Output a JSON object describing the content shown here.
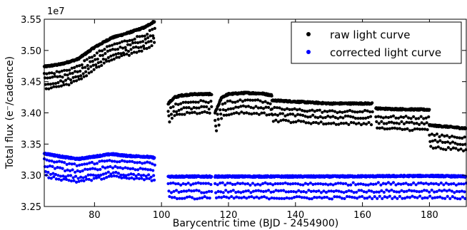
{
  "chart_data": {
    "type": "scatter",
    "xlabel": "Barycentric time (BJD - 2454900)",
    "ylabel": "Total flux (e⁻/cadence)",
    "y_offset_label": "1e7",
    "xlim": [
      65,
      191
    ],
    "ylim": [
      3.25,
      3.55
    ],
    "xticks": [
      "80",
      "100",
      "120",
      "140",
      "160",
      "180"
    ],
    "yticks": [
      "3.25",
      "3.30",
      "3.35",
      "3.40",
      "3.45",
      "3.50",
      "3.55"
    ],
    "grid": false,
    "legend_position": "top-right",
    "series": [
      {
        "name": "raw light curve",
        "color": "#000000",
        "segments": [
          {
            "x_range": [
              65,
              98
            ],
            "main_trend": [
              [
                65,
                3.474
              ],
              [
                70,
                3.478
              ],
              [
                75,
                3.486
              ],
              [
                80,
                3.505
              ],
              [
                85,
                3.52
              ],
              [
                90,
                3.528
              ],
              [
                95,
                3.537
              ],
              [
                98,
                3.547
              ]
            ],
            "lower_offsets": [
              -0.012,
              -0.02,
              -0.028,
              -0.035
            ]
          },
          {
            "x_range": [
              102,
              115
            ],
            "main_trend": [
              [
                102,
                3.415
              ],
              [
                104,
                3.425
              ],
              [
                106,
                3.428
              ],
              [
                110,
                3.43
              ],
              [
                115,
                3.43
              ]
            ],
            "lower_offsets": [
              -0.012,
              -0.022,
              -0.03
            ]
          },
          {
            "x_range": [
              116,
              133
            ],
            "main_trend": [
              [
                116,
                3.4
              ],
              [
                118,
                3.425
              ],
              [
                120,
                3.43
              ],
              [
                125,
                3.432
              ],
              [
                130,
                3.431
              ],
              [
                133,
                3.428
              ]
            ],
            "lower_offsets": [
              -0.012,
              -0.022,
              -0.032
            ]
          },
          {
            "x_range": [
              133,
              163
            ],
            "main_trend": [
              [
                133,
                3.42
              ],
              [
                140,
                3.418
              ],
              [
                150,
                3.415
              ],
              [
                163,
                3.415
              ]
            ],
            "lower_offsets": [
              -0.013,
              -0.022,
              -0.032
            ]
          },
          {
            "x_range": [
              164,
              180
            ],
            "main_trend": [
              [
                164,
                3.407
              ],
              [
                170,
                3.406
              ],
              [
                180,
                3.405
              ]
            ],
            "lower_offsets": [
              -0.013,
              -0.022,
              -0.032
            ]
          },
          {
            "x_range": [
              180,
              191
            ],
            "main_trend": [
              [
                180,
                3.38
              ],
              [
                185,
                3.378
              ],
              [
                191,
                3.375
              ]
            ],
            "lower_offsets": [
              -0.015,
              -0.025,
              -0.035
            ]
          }
        ]
      },
      {
        "name": "corrected light curve",
        "color": "#0000ff",
        "segments": [
          {
            "x_range": [
              65,
              98
            ],
            "main_trend": [
              [
                65,
                3.335
              ],
              [
                70,
                3.33
              ],
              [
                75,
                3.326
              ],
              [
                80,
                3.33
              ],
              [
                85,
                3.334
              ],
              [
                90,
                3.331
              ],
              [
                95,
                3.33
              ],
              [
                98,
                3.328
              ]
            ],
            "lower_offsets": [
              -0.01,
              -0.02,
              -0.03,
              -0.036
            ]
          },
          {
            "x_range": [
              102,
              115
            ],
            "main_trend": [
              [
                102,
                3.298
              ],
              [
                115,
                3.298
              ]
            ],
            "lower_offsets": [
              -0.012,
              -0.024,
              -0.034
            ]
          },
          {
            "x_range": [
              116,
              191
            ],
            "main_trend": [
              [
                116,
                3.298
              ],
              [
                150,
                3.298
              ],
              [
                180,
                3.299
              ],
              [
                191,
                3.298
              ]
            ],
            "lower_offsets": [
              -0.012,
              -0.024,
              -0.034
            ]
          }
        ]
      }
    ]
  }
}
